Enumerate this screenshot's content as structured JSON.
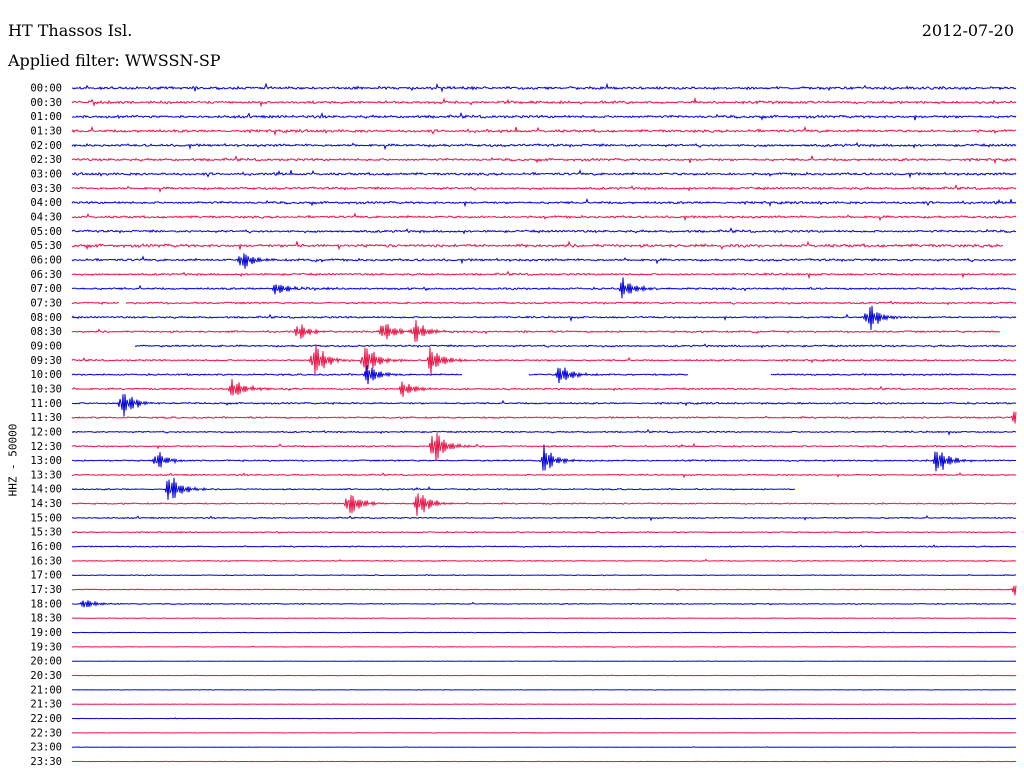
{
  "header": {
    "station": "HT Thassos Isl.",
    "date": "2012-07-20",
    "filter": "Applied filter: WWSSN-SP"
  },
  "chart_data": {
    "type": "line",
    "title": "HT Thassos Isl.",
    "subtitle": "Applied filter: WWSSN-SP",
    "ylabel": "HHZ - 50000",
    "xlabel": "",
    "rows": [
      "00:00",
      "00:30",
      "01:00",
      "01:30",
      "02:00",
      "02:30",
      "03:00",
      "03:30",
      "04:00",
      "04:30",
      "05:00",
      "05:30",
      "06:00",
      "06:30",
      "07:00",
      "07:30",
      "08:00",
      "08:30",
      "09:00",
      "09:30",
      "10:00",
      "10:30",
      "11:00",
      "11:30",
      "12:00",
      "12:30",
      "13:00",
      "13:30",
      "14:00",
      "14:30",
      "15:00",
      "15:30",
      "16:00",
      "16:30",
      "17:00",
      "17:30",
      "18:00",
      "18:30",
      "19:00",
      "19:30",
      "20:00",
      "20:30",
      "21:00",
      "21:30",
      "22:00",
      "22:30",
      "23:00",
      "23:30"
    ],
    "row_minutes": 30,
    "colors": [
      "#0000dd",
      "#ee1144"
    ],
    "noise_level": [
      0.8,
      0.8,
      0.8,
      0.8,
      0.75,
      0.75,
      0.75,
      0.7,
      0.7,
      0.7,
      0.7,
      0.9,
      0.7,
      0.6,
      0.6,
      0.55,
      0.55,
      0.55,
      0.55,
      0.5,
      0.5,
      0.5,
      0.5,
      0.5,
      0.45,
      0.45,
      0.45,
      0.4,
      0.4,
      0.4,
      0.4,
      0.35,
      0.35,
      0.3,
      0.25,
      0.25,
      0.3,
      0.2,
      0.15,
      0.15,
      0.12,
      0.12,
      0.12,
      0.12,
      0.12,
      0.1,
      0.1,
      0.1
    ],
    "events": [
      {
        "row": 12,
        "minute": 5.4,
        "amp": 3
      },
      {
        "row": 14,
        "minute": 17.5,
        "amp": 3
      },
      {
        "row": 14,
        "minute": 6.5,
        "amp": 2
      },
      {
        "row": 16,
        "minute": 25.3,
        "amp": 4
      },
      {
        "row": 17,
        "minute": 9.9,
        "amp": 3
      },
      {
        "row": 17,
        "minute": 10.9,
        "amp": 3
      },
      {
        "row": 17,
        "minute": 7.2,
        "amp": 2.5
      },
      {
        "row": 19,
        "minute": 7.7,
        "amp": 5
      },
      {
        "row": 19,
        "minute": 9.3,
        "amp": 5
      },
      {
        "row": 19,
        "minute": 11.4,
        "amp": 4
      },
      {
        "row": 20,
        "minute": 15.5,
        "amp": 3
      },
      {
        "row": 20,
        "minute": 9.4,
        "amp": 3
      },
      {
        "row": 21,
        "minute": 5.1,
        "amp": 3
      },
      {
        "row": 21,
        "minute": 10.5,
        "amp": 2.5
      },
      {
        "row": 22,
        "minute": 1.6,
        "amp": 4
      },
      {
        "row": 23,
        "minute": 30.0,
        "amp": 3
      },
      {
        "row": 25,
        "minute": 11.5,
        "amp": 5
      },
      {
        "row": 26,
        "minute": 15.0,
        "amp": 4
      },
      {
        "row": 26,
        "minute": 27.5,
        "amp": 4
      },
      {
        "row": 26,
        "minute": 2.7,
        "amp": 2.5
      },
      {
        "row": 28,
        "minute": 3.1,
        "amp": 4
      },
      {
        "row": 29,
        "minute": 8.8,
        "amp": 4
      },
      {
        "row": 29,
        "minute": 11.0,
        "amp": 4
      },
      {
        "row": 35,
        "minute": 30.0,
        "amp": 2
      },
      {
        "row": 36,
        "minute": 0.4,
        "amp": 1.5
      }
    ],
    "gaps": [
      {
        "row": 15,
        "start": 1.5,
        "end": 1.7
      },
      {
        "row": 17,
        "start": 29.5,
        "end": 30
      },
      {
        "row": 18,
        "start": 0,
        "end": 2.0
      },
      {
        "row": 20,
        "start": 12.4,
        "end": 14.5
      },
      {
        "row": 20,
        "start": 19.6,
        "end": 22.2
      },
      {
        "row": 28,
        "start": 23.0,
        "end": 30
      },
      {
        "row": 11,
        "start": 29.6,
        "end": 30
      }
    ]
  }
}
